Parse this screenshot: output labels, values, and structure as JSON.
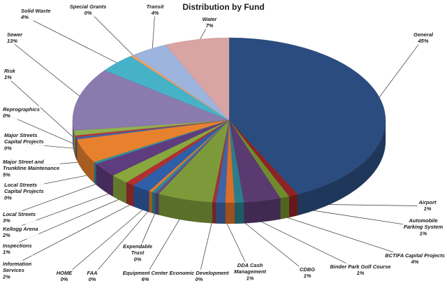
{
  "chart_data": {
    "type": "pie",
    "title": "Distribution by Fund",
    "slices": [
      {
        "name": "General",
        "value": 45,
        "label": "45%",
        "color": "#2B4C7E"
      },
      {
        "name": "Airport",
        "value": 1,
        "label": "1%",
        "color": "#8E2323"
      },
      {
        "name": "Automobile Parking System",
        "value": 1,
        "label": "1%",
        "color": "#6E8B2E"
      },
      {
        "name": "BCTIFA Capital Projects",
        "value": 4,
        "label": "4%",
        "color": "#5A3A70"
      },
      {
        "name": "Binder Park Golf Course",
        "value": 1,
        "label": "1%",
        "color": "#2A7E8C"
      },
      {
        "name": "CDBG",
        "value": 1,
        "label": "1%",
        "color": "#D86F2A"
      },
      {
        "name": "DDA Cash Management",
        "value": 1,
        "label": "1%",
        "color": "#3E64A8"
      },
      {
        "name": "Economic Development",
        "value": 0,
        "label": "0%",
        "color": "#A13232"
      },
      {
        "name": "Equipment Center",
        "value": 6,
        "label": "6%",
        "color": "#7D9A3A"
      },
      {
        "name": "Expendable Trust",
        "value": 0,
        "label": "0%",
        "color": "#684C86"
      },
      {
        "name": "FAA",
        "value": 0,
        "label": "0%",
        "color": "#2A8A9A"
      },
      {
        "name": "HOME",
        "value": 0,
        "label": "0%",
        "color": "#E07A2E"
      },
      {
        "name": "Information Services",
        "value": 2,
        "label": "2%",
        "color": "#2F5FA8"
      },
      {
        "name": "Inspections",
        "value": 1,
        "label": "1%",
        "color": "#B03030"
      },
      {
        "name": "Kellogg Arena",
        "value": 2,
        "label": "2%",
        "color": "#88A83E"
      },
      {
        "name": "Local Streets",
        "value": 3,
        "label": "3%",
        "color": "#5E3C7E"
      },
      {
        "name": "Local Streets Capital Projects",
        "value": 0,
        "label": "0%",
        "color": "#2E8FA0"
      },
      {
        "name": "Major Street and Trunkline Maintenance",
        "value": 5,
        "label": "5%",
        "color": "#E8812E"
      },
      {
        "name": "Major Streets Capital Projects",
        "value": 0,
        "label": "0%",
        "color": "#3A68B0"
      },
      {
        "name": "Reprographics",
        "value": 0,
        "label": "0%",
        "color": "#B83636"
      },
      {
        "name": "Risk",
        "value": 1,
        "label": "1%",
        "color": "#92B050"
      },
      {
        "name": "Sewer",
        "value": 13,
        "label": "13%",
        "color": "#8A7AAE"
      },
      {
        "name": "Solid Waste",
        "value": 4,
        "label": "4%",
        "color": "#45B2C8"
      },
      {
        "name": "Special Grants",
        "value": 0,
        "label": "0%",
        "color": "#F0A060"
      },
      {
        "name": "Transit",
        "value": 4,
        "label": "4%",
        "color": "#9CB4DE"
      },
      {
        "name": "Water",
        "value": 7,
        "label": "7%",
        "color": "#D8A4A4"
      }
    ],
    "legend": "none",
    "style": "3d-pie"
  }
}
